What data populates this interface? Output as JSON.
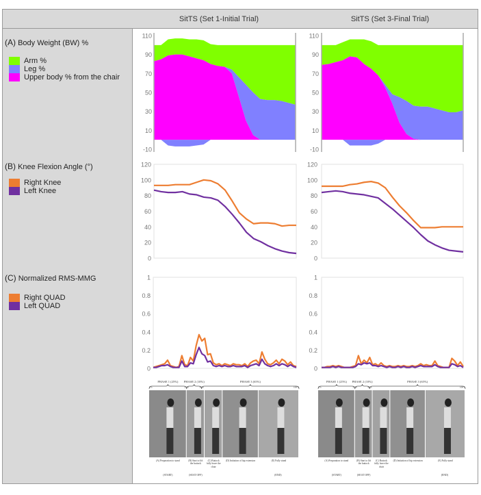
{
  "header": {
    "col1": "SitTS (Set 1-Initial Trial)",
    "col2": "SitTS (Set 3-Final Trial)"
  },
  "panels": {
    "a": {
      "letter": "(A)",
      "title": "Body Weight (BW) %",
      "legend": [
        {
          "label": "Arm %",
          "color": "#80ff00"
        },
        {
          "label": "Leg %",
          "color": "#8080ff"
        },
        {
          "label": "Upper body %  from the chair",
          "color": "#ff00ff"
        }
      ]
    },
    "b": {
      "letter": "(B)",
      "title": "Knee Flexion Angle (°)",
      "legend": [
        {
          "label": "Right Knee",
          "color": "#ed7d31"
        },
        {
          "label": "Left Knee",
          "color": "#7030a0"
        }
      ]
    },
    "c": {
      "letter": "(C)",
      "title": "Normalized RMS-MMG",
      "legend": [
        {
          "label": "Right QUAD",
          "color": "#ed7d31"
        },
        {
          "label": "Left QUAD",
          "color": "#7030a0"
        }
      ]
    }
  },
  "chart_data": [
    {
      "id": "a1",
      "type": "area",
      "stacked": true,
      "ylim": [
        -10,
        110
      ],
      "yticks": [
        110,
        90,
        70,
        50,
        30,
        10,
        -10
      ],
      "x": [
        0,
        5,
        10,
        15,
        20,
        25,
        30,
        35,
        40,
        45,
        50,
        55,
        60,
        65,
        70,
        75,
        80,
        85,
        90,
        95,
        100
      ],
      "series": [
        {
          "name": "Upper body %  from the chair",
          "color": "#ff00ff",
          "values": [
            83,
            85,
            89,
            90,
            90,
            88,
            86,
            84,
            80,
            78,
            77,
            70,
            45,
            20,
            5,
            0,
            0,
            0,
            0,
            0,
            0
          ]
        },
        {
          "name": "Leg %",
          "color": "#8080ff",
          "values": [
            0,
            0,
            -6,
            -7,
            -7,
            -7,
            -6,
            -5,
            0,
            0,
            0,
            4,
            21,
            38,
            45,
            43,
            42,
            42,
            41,
            39,
            37
          ]
        },
        {
          "name": "Arm %",
          "color": "#80ff00",
          "values": [
            17,
            15,
            17,
            17,
            17,
            18,
            20,
            21,
            21,
            22,
            23,
            26,
            34,
            42,
            50,
            57,
            58,
            58,
            59,
            61,
            63
          ]
        }
      ]
    },
    {
      "id": "a2",
      "type": "area",
      "stacked": true,
      "ylim": [
        -10,
        110
      ],
      "yticks": [
        110,
        90,
        70,
        50,
        30,
        10,
        -10
      ],
      "x": [
        0,
        5,
        10,
        15,
        20,
        25,
        30,
        35,
        40,
        45,
        50,
        55,
        60,
        65,
        70,
        75,
        80,
        85,
        90,
        95,
        100
      ],
      "series": [
        {
          "name": "Upper body %  from the chair",
          "color": "#ff00ff",
          "values": [
            79,
            80,
            82,
            84,
            88,
            87,
            80,
            75,
            68,
            55,
            38,
            18,
            6,
            1,
            0,
            0,
            0,
            0,
            0,
            0,
            0
          ]
        },
        {
          "name": "Leg %",
          "color": "#8080ff",
          "values": [
            0,
            0,
            0,
            0,
            -6,
            -6,
            -6,
            -6,
            -4,
            3,
            10,
            27,
            35,
            35,
            35,
            35,
            33,
            31,
            29,
            29,
            31
          ]
        },
        {
          "name": "Arm %",
          "color": "#80ff00",
          "values": [
            21,
            20,
            18,
            19,
            18,
            19,
            26,
            29,
            32,
            42,
            52,
            55,
            59,
            64,
            65,
            65,
            67,
            69,
            71,
            71,
            69
          ]
        }
      ]
    },
    {
      "id": "b1",
      "type": "line",
      "ylim": [
        0,
        120
      ],
      "yticks": [
        120,
        100,
        80,
        60,
        40,
        20,
        0
      ],
      "x": [
        0,
        5,
        10,
        15,
        20,
        25,
        30,
        35,
        40,
        45,
        50,
        55,
        60,
        65,
        70,
        75,
        80,
        85,
        90,
        95,
        100
      ],
      "series": [
        {
          "name": "Right Knee",
          "color": "#ed7d31",
          "values": [
            93,
            93,
            93,
            94,
            94,
            94,
            97,
            100,
            99,
            95,
            87,
            73,
            58,
            50,
            44,
            45,
            45,
            44,
            41,
            42,
            42
          ]
        },
        {
          "name": "Left Knee",
          "color": "#7030a0",
          "values": [
            87,
            85,
            84,
            84,
            85,
            82,
            81,
            78,
            77,
            74,
            66,
            56,
            45,
            33,
            25,
            21,
            16,
            12,
            9,
            7,
            6
          ]
        }
      ]
    },
    {
      "id": "b2",
      "type": "line",
      "ylim": [
        0,
        120
      ],
      "yticks": [
        120,
        100,
        80,
        60,
        40,
        20,
        0
      ],
      "x": [
        0,
        5,
        10,
        15,
        20,
        25,
        30,
        35,
        40,
        45,
        50,
        55,
        60,
        65,
        70,
        75,
        80,
        85,
        90,
        95,
        100
      ],
      "series": [
        {
          "name": "Right Knee",
          "color": "#ed7d31",
          "values": [
            92,
            92,
            92,
            92,
            94,
            95,
            97,
            98,
            96,
            90,
            78,
            67,
            58,
            48,
            39,
            39,
            39,
            40,
            40,
            40,
            40
          ]
        },
        {
          "name": "Left Knee",
          "color": "#7030a0",
          "values": [
            84,
            85,
            86,
            85,
            83,
            82,
            81,
            79,
            77,
            70,
            63,
            55,
            47,
            39,
            30,
            22,
            17,
            13,
            10,
            9,
            8
          ]
        }
      ]
    },
    {
      "id": "c1",
      "type": "line",
      "ylim": [
        0,
        1
      ],
      "yticks": [
        "1",
        "0.8",
        "0.6",
        "0.4",
        "0.2",
        "0"
      ],
      "xstep": 2,
      "series": [
        {
          "name": "Right QUAD",
          "color": "#ed7d31",
          "values": [
            0.01,
            0.02,
            0.03,
            0.04,
            0.05,
            0.09,
            0.03,
            0.02,
            0.01,
            0.02,
            0.14,
            0.04,
            0.03,
            0.12,
            0.08,
            0.25,
            0.37,
            0.3,
            0.33,
            0.15,
            0.16,
            0.06,
            0.04,
            0.05,
            0.03,
            0.05,
            0.04,
            0.03,
            0.05,
            0.04,
            0.04,
            0.03,
            0.05,
            0.02,
            0.06,
            0.08,
            0.09,
            0.05,
            0.18,
            0.1,
            0.05,
            0.04,
            0.06,
            0.09,
            0.05,
            0.1,
            0.08,
            0.04,
            0.07,
            0.03,
            0.02
          ]
        },
        {
          "name": "Left QUAD",
          "color": "#7030a0",
          "values": [
            0.01,
            0.01,
            0.02,
            0.03,
            0.03,
            0.04,
            0.02,
            0.01,
            0.01,
            0.01,
            0.08,
            0.02,
            0.02,
            0.06,
            0.05,
            0.15,
            0.23,
            0.16,
            0.14,
            0.07,
            0.08,
            0.03,
            0.02,
            0.03,
            0.02,
            0.03,
            0.02,
            0.02,
            0.03,
            0.02,
            0.02,
            0.02,
            0.03,
            0.01,
            0.03,
            0.04,
            0.05,
            0.03,
            0.1,
            0.05,
            0.03,
            0.02,
            0.03,
            0.05,
            0.03,
            0.05,
            0.04,
            0.02,
            0.04,
            0.02,
            0.01
          ]
        }
      ]
    },
    {
      "id": "c2",
      "type": "line",
      "ylim": [
        0,
        1
      ],
      "yticks": [
        "1",
        "0.8",
        "0.6",
        "0.4",
        "0.2",
        "0"
      ],
      "xstep": 2,
      "series": [
        {
          "name": "Right QUAD",
          "color": "#ed7d31",
          "values": [
            0.01,
            0.01,
            0.02,
            0.02,
            0.03,
            0.02,
            0.03,
            0.02,
            0.01,
            0.01,
            0.01,
            0.02,
            0.03,
            0.14,
            0.05,
            0.09,
            0.06,
            0.12,
            0.04,
            0.05,
            0.03,
            0.06,
            0.03,
            0.02,
            0.03,
            0.02,
            0.02,
            0.03,
            0.02,
            0.03,
            0.02,
            0.02,
            0.03,
            0.02,
            0.03,
            0.05,
            0.03,
            0.04,
            0.03,
            0.03,
            0.08,
            0.03,
            0.02,
            0.01,
            0.01,
            0.01,
            0.11,
            0.08,
            0.03,
            0.07,
            0.02
          ]
        },
        {
          "name": "Left QUAD",
          "color": "#7030a0",
          "values": [
            0.01,
            0.01,
            0.01,
            0.01,
            0.02,
            0.01,
            0.02,
            0.01,
            0.01,
            0.01,
            0.01,
            0.01,
            0.02,
            0.05,
            0.04,
            0.06,
            0.05,
            0.06,
            0.03,
            0.03,
            0.02,
            0.03,
            0.02,
            0.01,
            0.02,
            0.01,
            0.01,
            0.02,
            0.01,
            0.02,
            0.01,
            0.01,
            0.02,
            0.01,
            0.02,
            0.03,
            0.02,
            0.02,
            0.02,
            0.02,
            0.04,
            0.02,
            0.01,
            0.01,
            0.01,
            0.01,
            0.05,
            0.04,
            0.02,
            0.03,
            0.01
          ]
        }
      ]
    }
  ],
  "photos": [
    {
      "phases": [
        "PHASE 1 (25%)",
        "PHASE 2 (10%)",
        "PHASE 3 (65%)"
      ],
      "marks": [
        "0%",
        "25%",
        "35%",
        "100%"
      ]
    },
    {
      "phases": [
        "PHASE 1 (25%)",
        "PHASE 2 (10%)",
        "PHASE 3 (65%)"
      ],
      "marks": [
        "0%",
        "25%",
        "35%",
        "100%"
      ]
    }
  ],
  "photo_captions": [
    "(A) Preparation to stand",
    "(B) Start to lift the buttock",
    "(C) Buttock fully leave the chair",
    "(D) Initiation of hip extension",
    "(E) Fully stand"
  ],
  "photo_events": [
    "(START)",
    "(SEAT OFF)",
    "(END)"
  ]
}
